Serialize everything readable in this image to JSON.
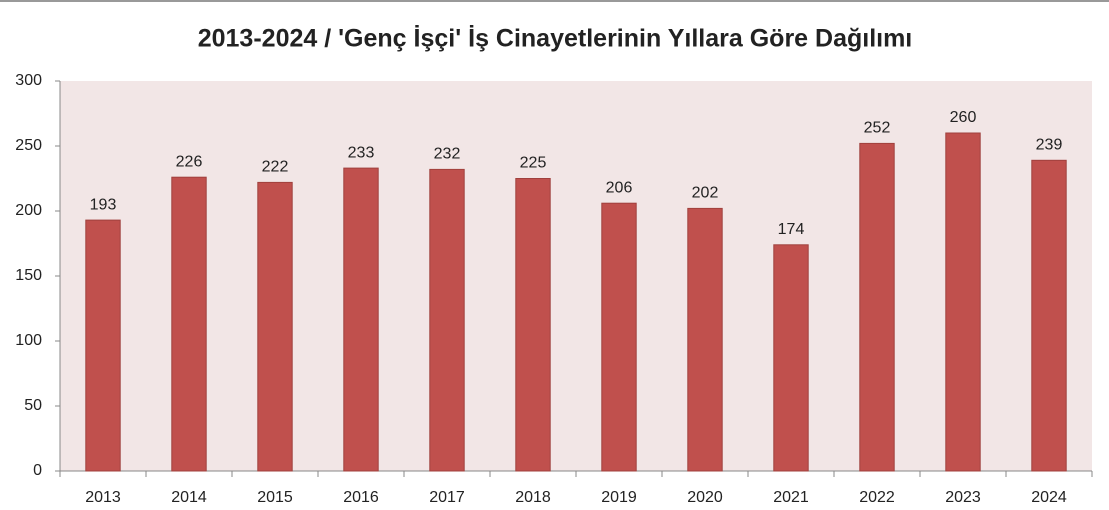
{
  "chart_data": {
    "type": "bar",
    "title": "2013-2024 / 'Genç İşçi' İş Cinayetlerinin Yıllara Göre Dağılımı",
    "categories": [
      "2013",
      "2014",
      "2015",
      "2016",
      "2017",
      "2018",
      "2019",
      "2020",
      "2021",
      "2022",
      "2023",
      "2024"
    ],
    "values": [
      193,
      226,
      222,
      233,
      232,
      225,
      206,
      202,
      174,
      252,
      260,
      239
    ],
    "color": "#c0504d",
    "ylim": [
      0,
      300
    ],
    "yticks": [
      0,
      50,
      100,
      150,
      200,
      250,
      300
    ],
    "grid": false
  }
}
